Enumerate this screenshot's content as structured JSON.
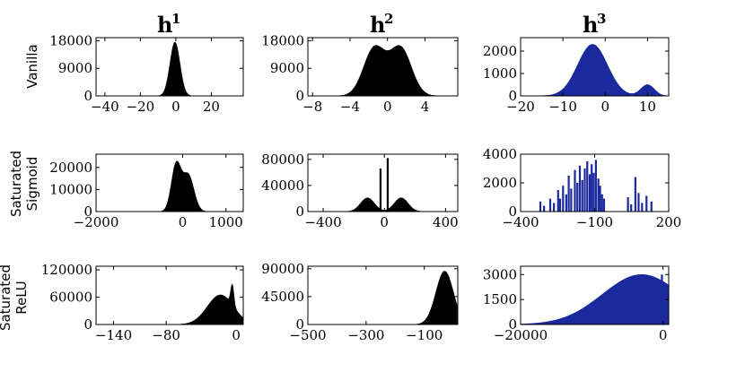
{
  "column_titles": [
    {
      "base": "h",
      "sup": "1"
    },
    {
      "base": "h",
      "sup": "2"
    },
    {
      "base": "h",
      "sup": "3"
    }
  ],
  "row_labels": [
    [
      "Vanilla"
    ],
    [
      "Saturated",
      "Sigmoid"
    ],
    [
      "Saturated",
      "ReLU"
    ]
  ],
  "colors": {
    "black_hist": "#000000",
    "blue_hist": "#1a2a9c"
  },
  "chart_data": [
    {
      "type": "histogram",
      "row": 0,
      "col": 0,
      "color": "#000000",
      "xlim": [
        -45,
        38
      ],
      "ylim": [
        0,
        19000
      ],
      "xticks": [
        {
          "v": -40,
          "label": "−40"
        },
        {
          "v": -20,
          "label": "−20"
        },
        {
          "v": 0,
          "label": "0"
        },
        {
          "v": 20,
          "label": "20"
        }
      ],
      "yticks": [
        {
          "v": 0,
          "label": "0"
        },
        {
          "v": 9000,
          "label": "9000"
        },
        {
          "v": 18000,
          "label": "18000"
        }
      ],
      "components": [
        {
          "mu": -0.5,
          "sigma": 2.8,
          "peak": 17500
        }
      ]
    },
    {
      "type": "histogram",
      "row": 0,
      "col": 1,
      "color": "#000000",
      "xlim": [
        -8.5,
        7.5
      ],
      "ylim": [
        0,
        19000
      ],
      "xticks": [
        {
          "v": -8,
          "label": "−8"
        },
        {
          "v": -4,
          "label": "−4"
        },
        {
          "v": 0,
          "label": "0"
        },
        {
          "v": 4,
          "label": "4"
        }
      ],
      "yticks": [
        {
          "v": 0,
          "label": "0"
        },
        {
          "v": 9000,
          "label": "9000"
        },
        {
          "v": 18000,
          "label": "18000"
        }
      ],
      "components": [
        {
          "mu": -1.4,
          "sigma": 1.15,
          "peak": 15500
        },
        {
          "mu": 1.4,
          "sigma": 1.15,
          "peak": 15500
        }
      ]
    },
    {
      "type": "histogram",
      "row": 0,
      "col": 2,
      "color": "#1a2a9c",
      "xlim": [
        -20,
        15
      ],
      "ylim": [
        0,
        2600
      ],
      "xticks": [
        {
          "v": -20,
          "label": "−20"
        },
        {
          "v": -10,
          "label": "−10"
        },
        {
          "v": 0,
          "label": "0"
        },
        {
          "v": 10,
          "label": "10"
        }
      ],
      "yticks": [
        {
          "v": 0,
          "label": "0"
        },
        {
          "v": 1000,
          "label": "1000"
        },
        {
          "v": 2000,
          "label": "2000"
        }
      ],
      "components": [
        {
          "mu": -3,
          "sigma": 3.5,
          "peak": 2300
        },
        {
          "mu": 10,
          "sigma": 1.6,
          "peak": 500
        }
      ]
    },
    {
      "type": "histogram",
      "row": 1,
      "col": 0,
      "color": "#000000",
      "xlim": [
        -2000,
        1400
      ],
      "ylim": [
        0,
        26000
      ],
      "xticks": [
        {
          "v": -2000,
          "label": "−2000"
        },
        {
          "v": 0,
          "label": "0"
        },
        {
          "v": 1000,
          "label": "1000"
        }
      ],
      "yticks": [
        {
          "v": 0,
          "label": "0"
        },
        {
          "v": 10000,
          "label": "10000"
        },
        {
          "v": 20000,
          "label": "20000"
        }
      ],
      "components": [
        {
          "mu": -150,
          "sigma": 110,
          "peak": 21000
        },
        {
          "mu": 130,
          "sigma": 130,
          "peak": 16500
        }
      ]
    },
    {
      "type": "histogram",
      "row": 1,
      "col": 1,
      "color": "#000000",
      "xlim": [
        -500,
        480
      ],
      "ylim": [
        0,
        88000
      ],
      "xticks": [
        {
          "v": -400,
          "label": "−400"
        },
        {
          "v": 0,
          "label": "0"
        },
        {
          "v": 400,
          "label": "400"
        }
      ],
      "yticks": [
        {
          "v": 0,
          "label": "0"
        },
        {
          "v": 40000,
          "label": "40000"
        },
        {
          "v": 80000,
          "label": "80000"
        }
      ],
      "components": [
        {
          "mu": -110,
          "sigma": 45,
          "peak": 21000
        },
        {
          "mu": 110,
          "sigma": 45,
          "peak": 21000
        }
      ],
      "spikes": [
        {
          "x": -25,
          "y": 66000
        },
        {
          "x": 22,
          "y": 82000
        }
      ]
    },
    {
      "type": "histogram",
      "row": 1,
      "col": 2,
      "color": "#1a2a9c",
      "xlim": [
        -400,
        200
      ],
      "ylim": [
        0,
        4000
      ],
      "xticks": [
        {
          "v": -400,
          "label": "−400"
        },
        {
          "v": -100,
          "label": "−100"
        },
        {
          "v": 200,
          "label": "200"
        }
      ],
      "yticks": [
        {
          "v": 0,
          "label": "0"
        },
        {
          "v": 2000,
          "label": "2000"
        },
        {
          "v": 4000,
          "label": "4000"
        }
      ],
      "spikes": [
        {
          "x": -320,
          "y": 700
        },
        {
          "x": -305,
          "y": 400
        },
        {
          "x": -280,
          "y": 900
        },
        {
          "x": -265,
          "y": 600
        },
        {
          "x": -248,
          "y": 1500
        },
        {
          "x": -240,
          "y": 900
        },
        {
          "x": -228,
          "y": 1800
        },
        {
          "x": -215,
          "y": 1200
        },
        {
          "x": -205,
          "y": 2500
        },
        {
          "x": -195,
          "y": 1600
        },
        {
          "x": -180,
          "y": 2900
        },
        {
          "x": -170,
          "y": 2000
        },
        {
          "x": -160,
          "y": 3200
        },
        {
          "x": -150,
          "y": 2200
        },
        {
          "x": -140,
          "y": 3000
        },
        {
          "x": -130,
          "y": 3500
        },
        {
          "x": -120,
          "y": 2600
        },
        {
          "x": -112,
          "y": 3300
        },
        {
          "x": -104,
          "y": 2700
        },
        {
          "x": -95,
          "y": 3600
        },
        {
          "x": -85,
          "y": 2300
        },
        {
          "x": -78,
          "y": 1800
        },
        {
          "x": -70,
          "y": 1200
        },
        {
          "x": -62,
          "y": 900
        },
        {
          "x": 35,
          "y": 1000
        },
        {
          "x": 48,
          "y": 500
        },
        {
          "x": 65,
          "y": 2400
        },
        {
          "x": 78,
          "y": 1300
        },
        {
          "x": 92,
          "y": 600
        },
        {
          "x": 110,
          "y": 1100
        },
        {
          "x": 130,
          "y": 700
        }
      ]
    },
    {
      "type": "histogram",
      "row": 2,
      "col": 0,
      "color": "#000000",
      "xlim": [
        -160,
        8
      ],
      "ylim": [
        0,
        128000
      ],
      "xticks": [
        {
          "v": -140,
          "label": "−140"
        },
        {
          "v": -80,
          "label": "−80"
        },
        {
          "v": 0,
          "label": "0"
        }
      ],
      "yticks": [
        {
          "v": 0,
          "label": "0"
        },
        {
          "v": 60000,
          "label": "60000"
        },
        {
          "v": 120000,
          "label": "120000"
        }
      ],
      "components": [
        {
          "mu": -18,
          "sigma": 15,
          "peak": 65000
        },
        {
          "mu": -4.5,
          "sigma": 1.8,
          "peak": 45000
        }
      ]
    },
    {
      "type": "histogram",
      "row": 2,
      "col": 1,
      "color": "#000000",
      "xlim": [
        -500,
        15
      ],
      "ylim": [
        0,
        94000
      ],
      "xticks": [
        {
          "v": -500,
          "label": "−500"
        },
        {
          "v": -300,
          "label": "−300"
        },
        {
          "v": -100,
          "label": "−100"
        }
      ],
      "yticks": [
        {
          "v": 0,
          "label": "0"
        },
        {
          "v": 45000,
          "label": "45000"
        },
        {
          "v": 90000,
          "label": "90000"
        }
      ],
      "components": [
        {
          "mu": -30,
          "sigma": 30,
          "peak": 86000
        }
      ]
    },
    {
      "type": "histogram",
      "row": 2,
      "col": 2,
      "color": "#1a2a9c",
      "xlim": [
        -20000,
        800
      ],
      "ylim": [
        0,
        3500
      ],
      "xticks": [
        {
          "v": -20000,
          "label": "−20000"
        },
        {
          "v": 0,
          "label": "0"
        }
      ],
      "yticks": [
        {
          "v": 0,
          "label": "0"
        },
        {
          "v": 1500,
          "label": "1500"
        },
        {
          "v": 3000,
          "label": "3000"
        }
      ],
      "components": [
        {
          "mu": -3000,
          "sigma": 5500,
          "peak": 3000
        }
      ],
      "spikes": [
        {
          "x": -150,
          "y": 3000
        }
      ]
    }
  ]
}
